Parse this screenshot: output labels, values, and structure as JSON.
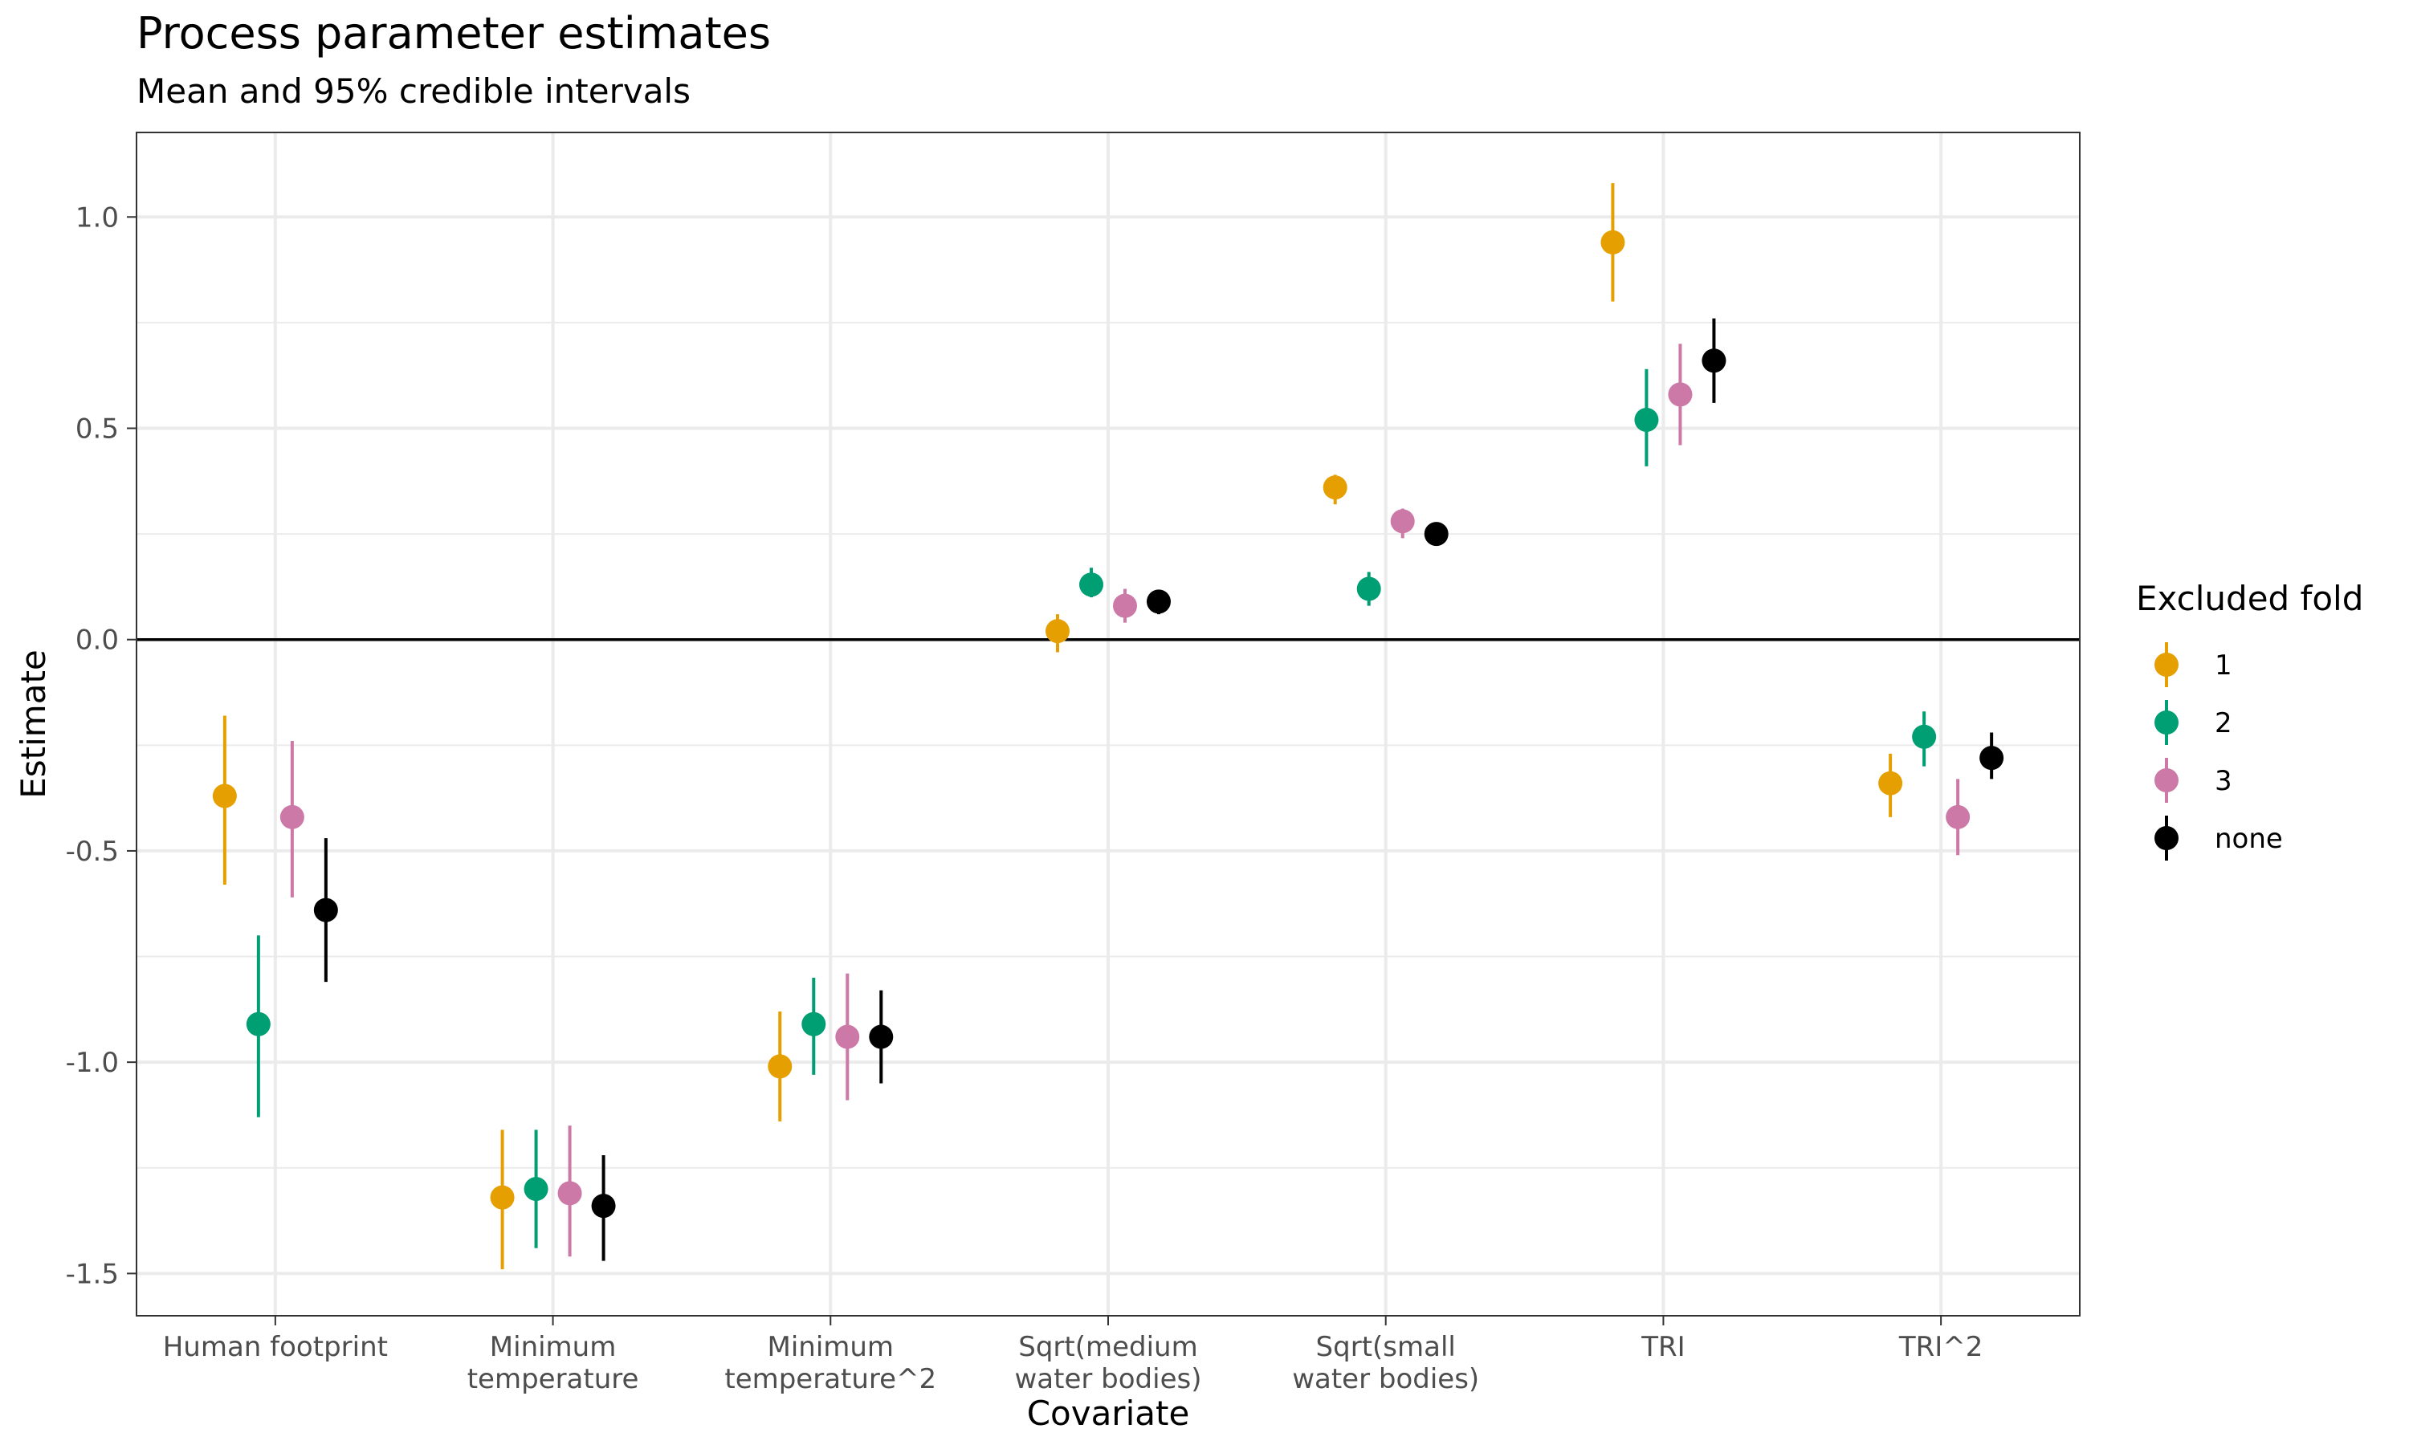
{
  "chart_data": {
    "type": "scatter",
    "title": "Process parameter estimates",
    "subtitle": "Mean and 95% credible intervals",
    "xlabel": "Covariate",
    "ylabel": "Estimate",
    "ylim": [
      -1.6,
      1.2
    ],
    "y_ticks": [
      1.0,
      0.5,
      0.0,
      -0.5,
      -1.0,
      -1.5
    ],
    "y_tick_labels": [
      "1.0",
      "0.5",
      "0.0",
      "-0.5",
      "-1.0",
      "-1.5"
    ],
    "reference_line": 0,
    "grid": true,
    "categories": [
      [
        "Human footprint"
      ],
      [
        "Minimum",
        "temperature"
      ],
      [
        "Minimum",
        "temperature^2"
      ],
      [
        "Sqrt(medium",
        "water bodies)"
      ],
      [
        "Sqrt(small",
        "water bodies)"
      ],
      [
        "TRI"
      ],
      [
        "TRI^2"
      ]
    ],
    "legend": {
      "title": "Excluded fold",
      "position": "right"
    },
    "series": [
      {
        "name": "1",
        "color": "#E69F00",
        "mean": [
          -0.37,
          -1.32,
          -1.01,
          0.02,
          0.36,
          0.94,
          -0.34
        ],
        "lower": [
          -0.58,
          -1.49,
          -1.14,
          -0.03,
          0.32,
          0.8,
          -0.42
        ],
        "upper": [
          -0.18,
          -1.16,
          -0.88,
          0.06,
          0.39,
          1.08,
          -0.27
        ]
      },
      {
        "name": "2",
        "color": "#009E73",
        "mean": [
          -0.91,
          -1.3,
          -0.91,
          0.13,
          0.12,
          0.52,
          -0.23
        ],
        "lower": [
          -1.13,
          -1.44,
          -1.03,
          0.1,
          0.08,
          0.41,
          -0.3
        ],
        "upper": [
          -0.7,
          -1.16,
          -0.8,
          0.17,
          0.16,
          0.64,
          -0.17
        ]
      },
      {
        "name": "3",
        "color": "#CC79A7",
        "mean": [
          -0.42,
          -1.31,
          -0.94,
          0.08,
          0.28,
          0.58,
          -0.42
        ],
        "lower": [
          -0.61,
          -1.46,
          -1.09,
          0.04,
          0.24,
          0.46,
          -0.51
        ],
        "upper": [
          -0.24,
          -1.15,
          -0.79,
          0.12,
          0.31,
          0.7,
          -0.33
        ]
      },
      {
        "name": "none",
        "color": "#000000",
        "mean": [
          -0.64,
          -1.34,
          -0.94,
          0.09,
          0.25,
          0.66,
          -0.28
        ],
        "lower": [
          -0.81,
          -1.47,
          -1.05,
          0.06,
          0.23,
          0.56,
          -0.33
        ],
        "upper": [
          -0.47,
          -1.22,
          -0.83,
          0.11,
          0.27,
          0.76,
          -0.22
        ]
      }
    ]
  }
}
